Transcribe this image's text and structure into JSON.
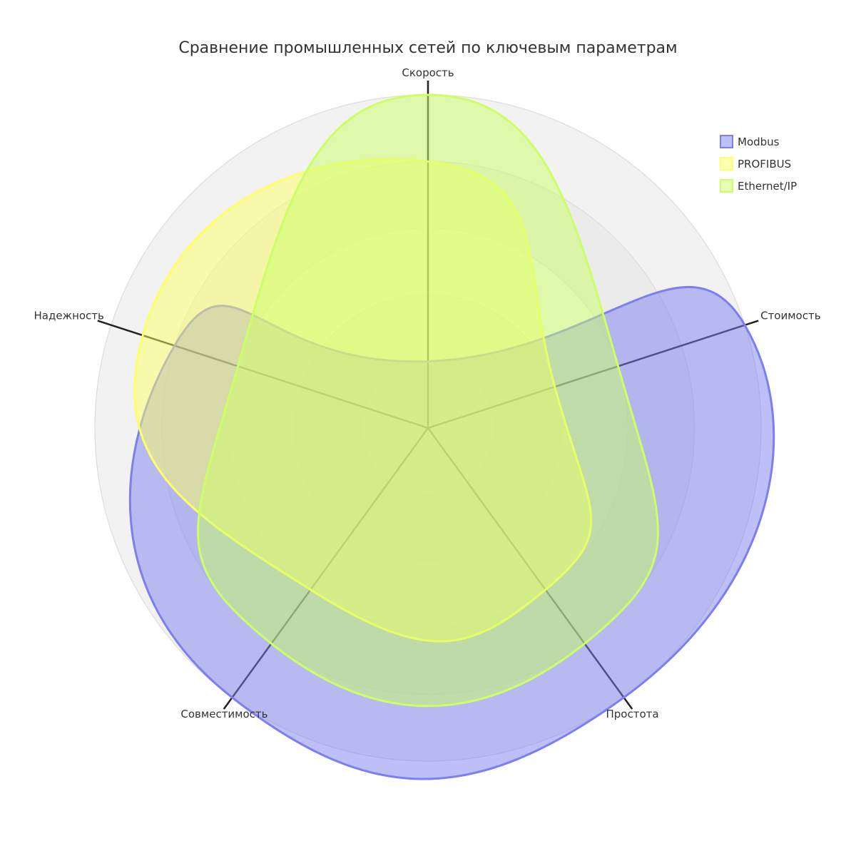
{
  "chart_data": {
    "type": "radar",
    "title": "Сравнение промышленных сетей по ключевым параметрам",
    "axes": [
      "Скорость",
      "Стоимость",
      "Простота",
      "Совместимость",
      "Надежность"
    ],
    "rlim": [
      0,
      5
    ],
    "grid": true,
    "legend_position": "top-right",
    "series": [
      {
        "name": "Modbus",
        "values": [
          1,
          5,
          5,
          5,
          4
        ],
        "color": "#7b7ff0",
        "fill": "rgba(123,127,240,0.50)"
      },
      {
        "name": "PROFIBUS",
        "values": [
          4,
          2,
          3,
          3,
          4.5
        ],
        "color": "#ffff66",
        "fill": "rgba(255,255,102,0.50)"
      },
      {
        "name": "Ethernet/IP",
        "values": [
          5,
          3,
          4,
          4,
          3
        ],
        "color": "#ccff66",
        "fill": "rgba(204,255,102,0.50)"
      }
    ]
  }
}
